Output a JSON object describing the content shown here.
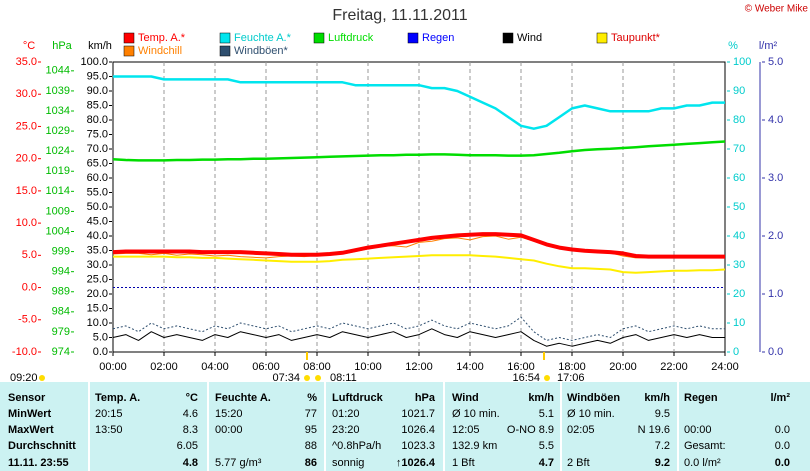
{
  "chart_data": {
    "type": "line",
    "title": "Freitag, 11.11.2011",
    "copyright": "© Weber Mike",
    "grid": "x",
    "zero_line": true,
    "xlim": [
      0,
      24
    ],
    "xticks": [
      {
        "value": 0,
        "label": "00:00"
      },
      {
        "value": 2,
        "label": "02:00"
      },
      {
        "value": 4,
        "label": "04:00"
      },
      {
        "value": 6,
        "label": "06:00"
      },
      {
        "value": 8,
        "label": "08:00"
      },
      {
        "value": 10,
        "label": "10:00"
      },
      {
        "value": 12,
        "label": "12:00"
      },
      {
        "value": 14,
        "label": "14:00"
      },
      {
        "value": 16,
        "label": "16:00"
      },
      {
        "value": 18,
        "label": "18:00"
      },
      {
        "value": 20,
        "label": "20:00"
      },
      {
        "value": 22,
        "label": "22:00"
      },
      {
        "value": 24,
        "label": "24:00"
      }
    ],
    "axes": [
      {
        "unit": "°C",
        "side": "left",
        "color": "#ff0000",
        "lim": [
          -10,
          35
        ],
        "ticks": [
          {
            "value": -10,
            "label": "-10.0"
          },
          {
            "value": -5,
            "label": "-5.0"
          },
          {
            "value": 0,
            "label": "0.0"
          },
          {
            "value": 5,
            "label": "5.0"
          },
          {
            "value": 10,
            "label": "10.0"
          },
          {
            "value": 15,
            "label": "15.0"
          },
          {
            "value": 20,
            "label": "20.0"
          },
          {
            "value": 25,
            "label": "25.0"
          },
          {
            "value": 30,
            "label": "30.0"
          },
          {
            "value": 35,
            "label": "35.0"
          }
        ]
      },
      {
        "unit": "hPa",
        "side": "left",
        "color": "#00bb00",
        "lim": [
          974,
          1046.2
        ],
        "ticks": [
          974,
          979,
          984,
          989,
          994,
          999,
          1004,
          1009,
          1014,
          1019,
          1024,
          1029,
          1034,
          1039,
          1044
        ]
      },
      {
        "unit": "km/h",
        "side": "left",
        "color": "#000000",
        "lim": [
          0,
          100
        ],
        "ticks": [
          {
            "value": 0,
            "label": "0.0"
          },
          {
            "value": 5,
            "label": "5.0"
          },
          {
            "value": 10,
            "label": "10.0"
          },
          {
            "value": 15,
            "label": "15.0"
          },
          {
            "value": 20,
            "label": "20.0"
          },
          {
            "value": 25,
            "label": "25.0"
          },
          {
            "value": 30,
            "label": "30.0"
          },
          {
            "value": 35,
            "label": "35.0"
          },
          {
            "value": 40,
            "label": "40.0"
          },
          {
            "value": 45,
            "label": "45.0"
          },
          {
            "value": 50,
            "label": "50.0"
          },
          {
            "value": 55,
            "label": "55.0"
          },
          {
            "value": 60,
            "label": "60.0"
          },
          {
            "value": 65,
            "label": "65.0"
          },
          {
            "value": 70,
            "label": "70.0"
          },
          {
            "value": 75,
            "label": "75.0"
          },
          {
            "value": 80,
            "label": "80.0"
          },
          {
            "value": 85,
            "label": "85.0"
          },
          {
            "value": 90,
            "label": "90.0"
          },
          {
            "value": 95,
            "label": "95.0"
          },
          {
            "value": 100,
            "label": "100.0"
          }
        ]
      },
      {
        "unit": "%",
        "side": "right",
        "color": "#00cccc",
        "lim": [
          0,
          100
        ],
        "ticks": [
          0,
          10,
          20,
          30,
          40,
          50,
          60,
          70,
          80,
          90,
          100
        ]
      },
      {
        "unit": "l/m²",
        "side": "right",
        "color": "#3333aa",
        "lim": [
          0,
          5
        ],
        "ticks": [
          {
            "value": 0,
            "label": "0.0"
          },
          {
            "value": 1,
            "label": "1.0"
          },
          {
            "value": 2,
            "label": "2.0"
          },
          {
            "value": 3,
            "label": "3.0"
          },
          {
            "value": 4,
            "label": "4.0"
          },
          {
            "value": 5,
            "label": "5.0"
          }
        ]
      }
    ],
    "x": [
      0,
      0.5,
      1,
      1.5,
      2,
      2.5,
      3,
      3.5,
      4,
      4.5,
      5,
      5.5,
      6,
      6.5,
      7,
      7.5,
      8,
      8.5,
      9,
      9.5,
      10,
      10.5,
      11,
      11.5,
      12,
      12.5,
      13,
      13.5,
      14,
      14.5,
      15,
      15.5,
      16,
      16.5,
      17,
      17.5,
      18,
      18.5,
      19,
      19.5,
      20,
      20.5,
      21,
      21.5,
      22,
      22.5,
      23,
      23.5,
      24
    ],
    "series": [
      {
        "name": "Temp. A.*",
        "color": "#ff0000",
        "axis": 0,
        "width": 4,
        "values": [
          5.5,
          5.6,
          5.6,
          5.6,
          5.6,
          5.6,
          5.6,
          5.5,
          5.5,
          5.5,
          5.5,
          5.4,
          5.3,
          5.2,
          5.1,
          5.1,
          5.1,
          5.2,
          5.4,
          5.8,
          6.2,
          6.5,
          6.8,
          7.1,
          7.4,
          7.7,
          7.9,
          8.1,
          8.2,
          8.3,
          8.3,
          8.2,
          8.1,
          7.4,
          6.7,
          6.2,
          5.9,
          5.7,
          5.6,
          5.5,
          5.3,
          4.9,
          4.8,
          4.8,
          4.8,
          4.8,
          4.8,
          4.8,
          4.8
        ]
      },
      {
        "name": "Feuchte A.*",
        "color": "#00e5ee",
        "axis": 3,
        "width": 2.5,
        "values": [
          95,
          95,
          95,
          95,
          94,
          94,
          94,
          94,
          94,
          94,
          93,
          93,
          93,
          93,
          93,
          93,
          93,
          93,
          93,
          92,
          92,
          92,
          92,
          92,
          92,
          91,
          91,
          90,
          88,
          86,
          84,
          81,
          78,
          77,
          78,
          81,
          84,
          85,
          84,
          83,
          83,
          83,
          83,
          84,
          84,
          85,
          85,
          86,
          86
        ]
      },
      {
        "name": "Luftdruck",
        "color": "#00dd00",
        "axis": 1,
        "width": 2.5,
        "values": [
          1022.0,
          1021.8,
          1021.7,
          1021.7,
          1021.7,
          1021.8,
          1021.8,
          1021.9,
          1021.9,
          1022.0,
          1022.0,
          1022.1,
          1022.1,
          1022.2,
          1022.3,
          1022.4,
          1022.5,
          1022.6,
          1022.7,
          1022.8,
          1022.9,
          1023.0,
          1023.0,
          1023.1,
          1023.1,
          1023.2,
          1023.2,
          1023.1,
          1023.0,
          1023.0,
          1023.0,
          1022.9,
          1022.9,
          1023.0,
          1023.3,
          1023.6,
          1024.0,
          1024.3,
          1024.5,
          1024.6,
          1024.8,
          1025.0,
          1025.2,
          1025.4,
          1025.6,
          1025.8,
          1026.0,
          1026.2,
          1026.4
        ]
      },
      {
        "name": "Regen",
        "color": "#0000ff",
        "axis": 4
      },
      {
        "name": "Wind",
        "color": "#000000",
        "axis": 2,
        "width": 1,
        "values": [
          5,
          6,
          4,
          7,
          5,
          6,
          5,
          4,
          6,
          5,
          7,
          6,
          5,
          6,
          4,
          5,
          6,
          5,
          7,
          6,
          5,
          6,
          7,
          5,
          6,
          8,
          6,
          5,
          7,
          6,
          5,
          6,
          7,
          4,
          2,
          3,
          2,
          3,
          4,
          3,
          5,
          6,
          4,
          5,
          6,
          5,
          6,
          5,
          5
        ]
      },
      {
        "name": "Taupunkt*",
        "color": "#ffee00",
        "axis": 0,
        "width": 2,
        "values": [
          4.8,
          4.8,
          4.8,
          4.8,
          4.8,
          4.7,
          4.7,
          4.6,
          4.6,
          4.5,
          4.4,
          4.3,
          4.2,
          4.1,
          4.0,
          4.0,
          4.0,
          4.1,
          4.3,
          4.4,
          4.5,
          4.6,
          4.7,
          4.8,
          4.9,
          5.0,
          5.0,
          5.0,
          5.0,
          4.9,
          4.8,
          4.6,
          4.4,
          4.2,
          3.7,
          3.3,
          3.0,
          3.0,
          2.9,
          2.8,
          2.4,
          2.3,
          2.4,
          2.5,
          2.6,
          2.6,
          2.7,
          2.7,
          2.8
        ]
      },
      {
        "name": "Windchill",
        "color": "#ff8000",
        "axis": 0,
        "width": 1,
        "values": [
          5.2,
          5.3,
          5.3,
          5.1,
          5.3,
          5.0,
          5.2,
          5.1,
          4.9,
          5.0,
          4.8,
          4.7,
          4.6,
          4.8,
          4.9,
          4.8,
          5.0,
          5.0,
          5.2,
          5.6,
          6.0,
          6.4,
          6.5,
          6.3,
          7.0,
          7.2,
          7.6,
          7.7,
          7.4,
          7.9,
          8.0,
          7.5,
          7.8,
          7.2,
          6.6,
          6.1,
          5.8,
          5.6,
          5.5,
          5.4,
          4.9,
          4.6,
          4.6,
          4.7,
          4.7,
          4.6,
          4.7,
          4.7,
          4.7
        ]
      },
      {
        "name": "Windböen*",
        "color": "#2f4f6f",
        "axis": 2,
        "width": 1,
        "dash": true,
        "values": [
          8,
          9,
          7,
          10,
          8,
          9,
          8,
          7,
          9,
          8,
          10,
          9,
          8,
          9,
          7,
          8,
          9,
          8,
          10,
          9,
          8,
          9,
          10,
          8,
          9,
          11,
          9,
          8,
          10,
          9,
          8,
          9,
          12,
          7,
          4,
          5,
          4,
          5,
          6,
          5,
          8,
          9,
          7,
          8,
          9,
          8,
          9,
          8,
          8
        ]
      }
    ],
    "annotations": [
      "09:20",
      "07:34",
      "08:11",
      "16:54",
      "17:06"
    ]
  },
  "table": {
    "rows": [
      [
        "Sensor",
        "Temp. A.",
        "°C",
        "Feuchte A.",
        "%",
        "Luftdruck",
        "hPa",
        "Wind",
        "km/h",
        "Windböen",
        "km/h",
        "Regen",
        "l/m²"
      ],
      [
        "MinWert",
        "20:15",
        "4.6",
        "15:20",
        "77",
        "01:20",
        "1021.7",
        "Ø 10 min.",
        "5.1",
        "Ø 10 min.",
        "9.5",
        null,
        null
      ],
      [
        "MaxWert",
        "13:50",
        "8.3",
        "00:00",
        "95",
        "23:20",
        "1026.4",
        "12:05",
        "O-NO 8.9",
        "02:05",
        "N 19.6",
        "00:00",
        "0.0"
      ],
      [
        "Durchschnitt",
        null,
        "6.05",
        null,
        "88",
        "^0.8hPa/h",
        "1023.3",
        "132.9 km",
        "5.5",
        null,
        "7.2",
        "Gesamt:",
        "0.0"
      ],
      [
        "11.11. 23:55",
        null,
        "4.8",
        "5.77 g/m³",
        "86",
        "sonnig",
        "↑1026.4",
        "1 Bft",
        "4.7",
        "2 Bft",
        "9.2",
        "0.0 l/m²",
        "0.0"
      ]
    ]
  }
}
